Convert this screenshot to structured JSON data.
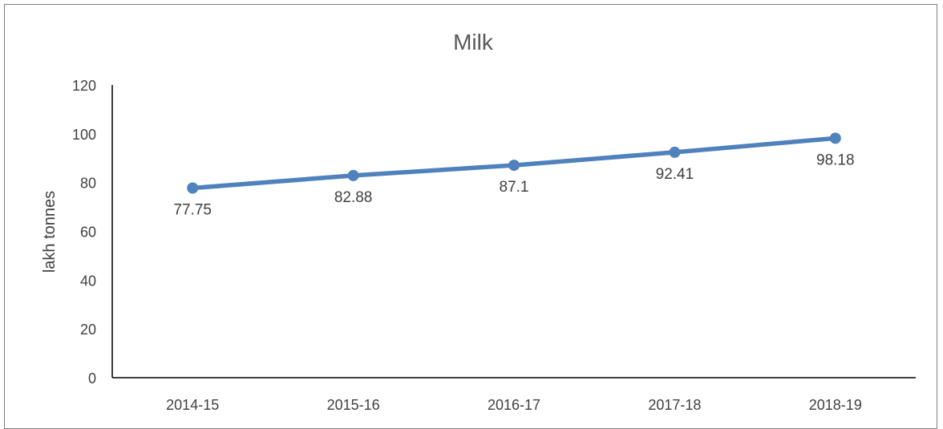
{
  "chart_data": {
    "type": "line",
    "title": "Milk",
    "xlabel": "",
    "ylabel": "lakh tonnes",
    "categories": [
      "2014-15",
      "2015-16",
      "2016-17",
      "2017-18",
      "2018-19"
    ],
    "series": [
      {
        "values": [
          77.75,
          82.88,
          87.1,
          92.41,
          98.18
        ],
        "color": "#4f81bd"
      }
    ],
    "data_labels": [
      "77.75",
      "82.88",
      "87.1",
      "92.41",
      "98.18"
    ],
    "ylim": [
      0,
      120
    ],
    "yticks": [
      0,
      20,
      40,
      60,
      80,
      100,
      120
    ],
    "ytick_labels": [
      "0",
      "20",
      "40",
      "60",
      "80",
      "100",
      "120"
    ],
    "grid": false,
    "legend": "none"
  }
}
